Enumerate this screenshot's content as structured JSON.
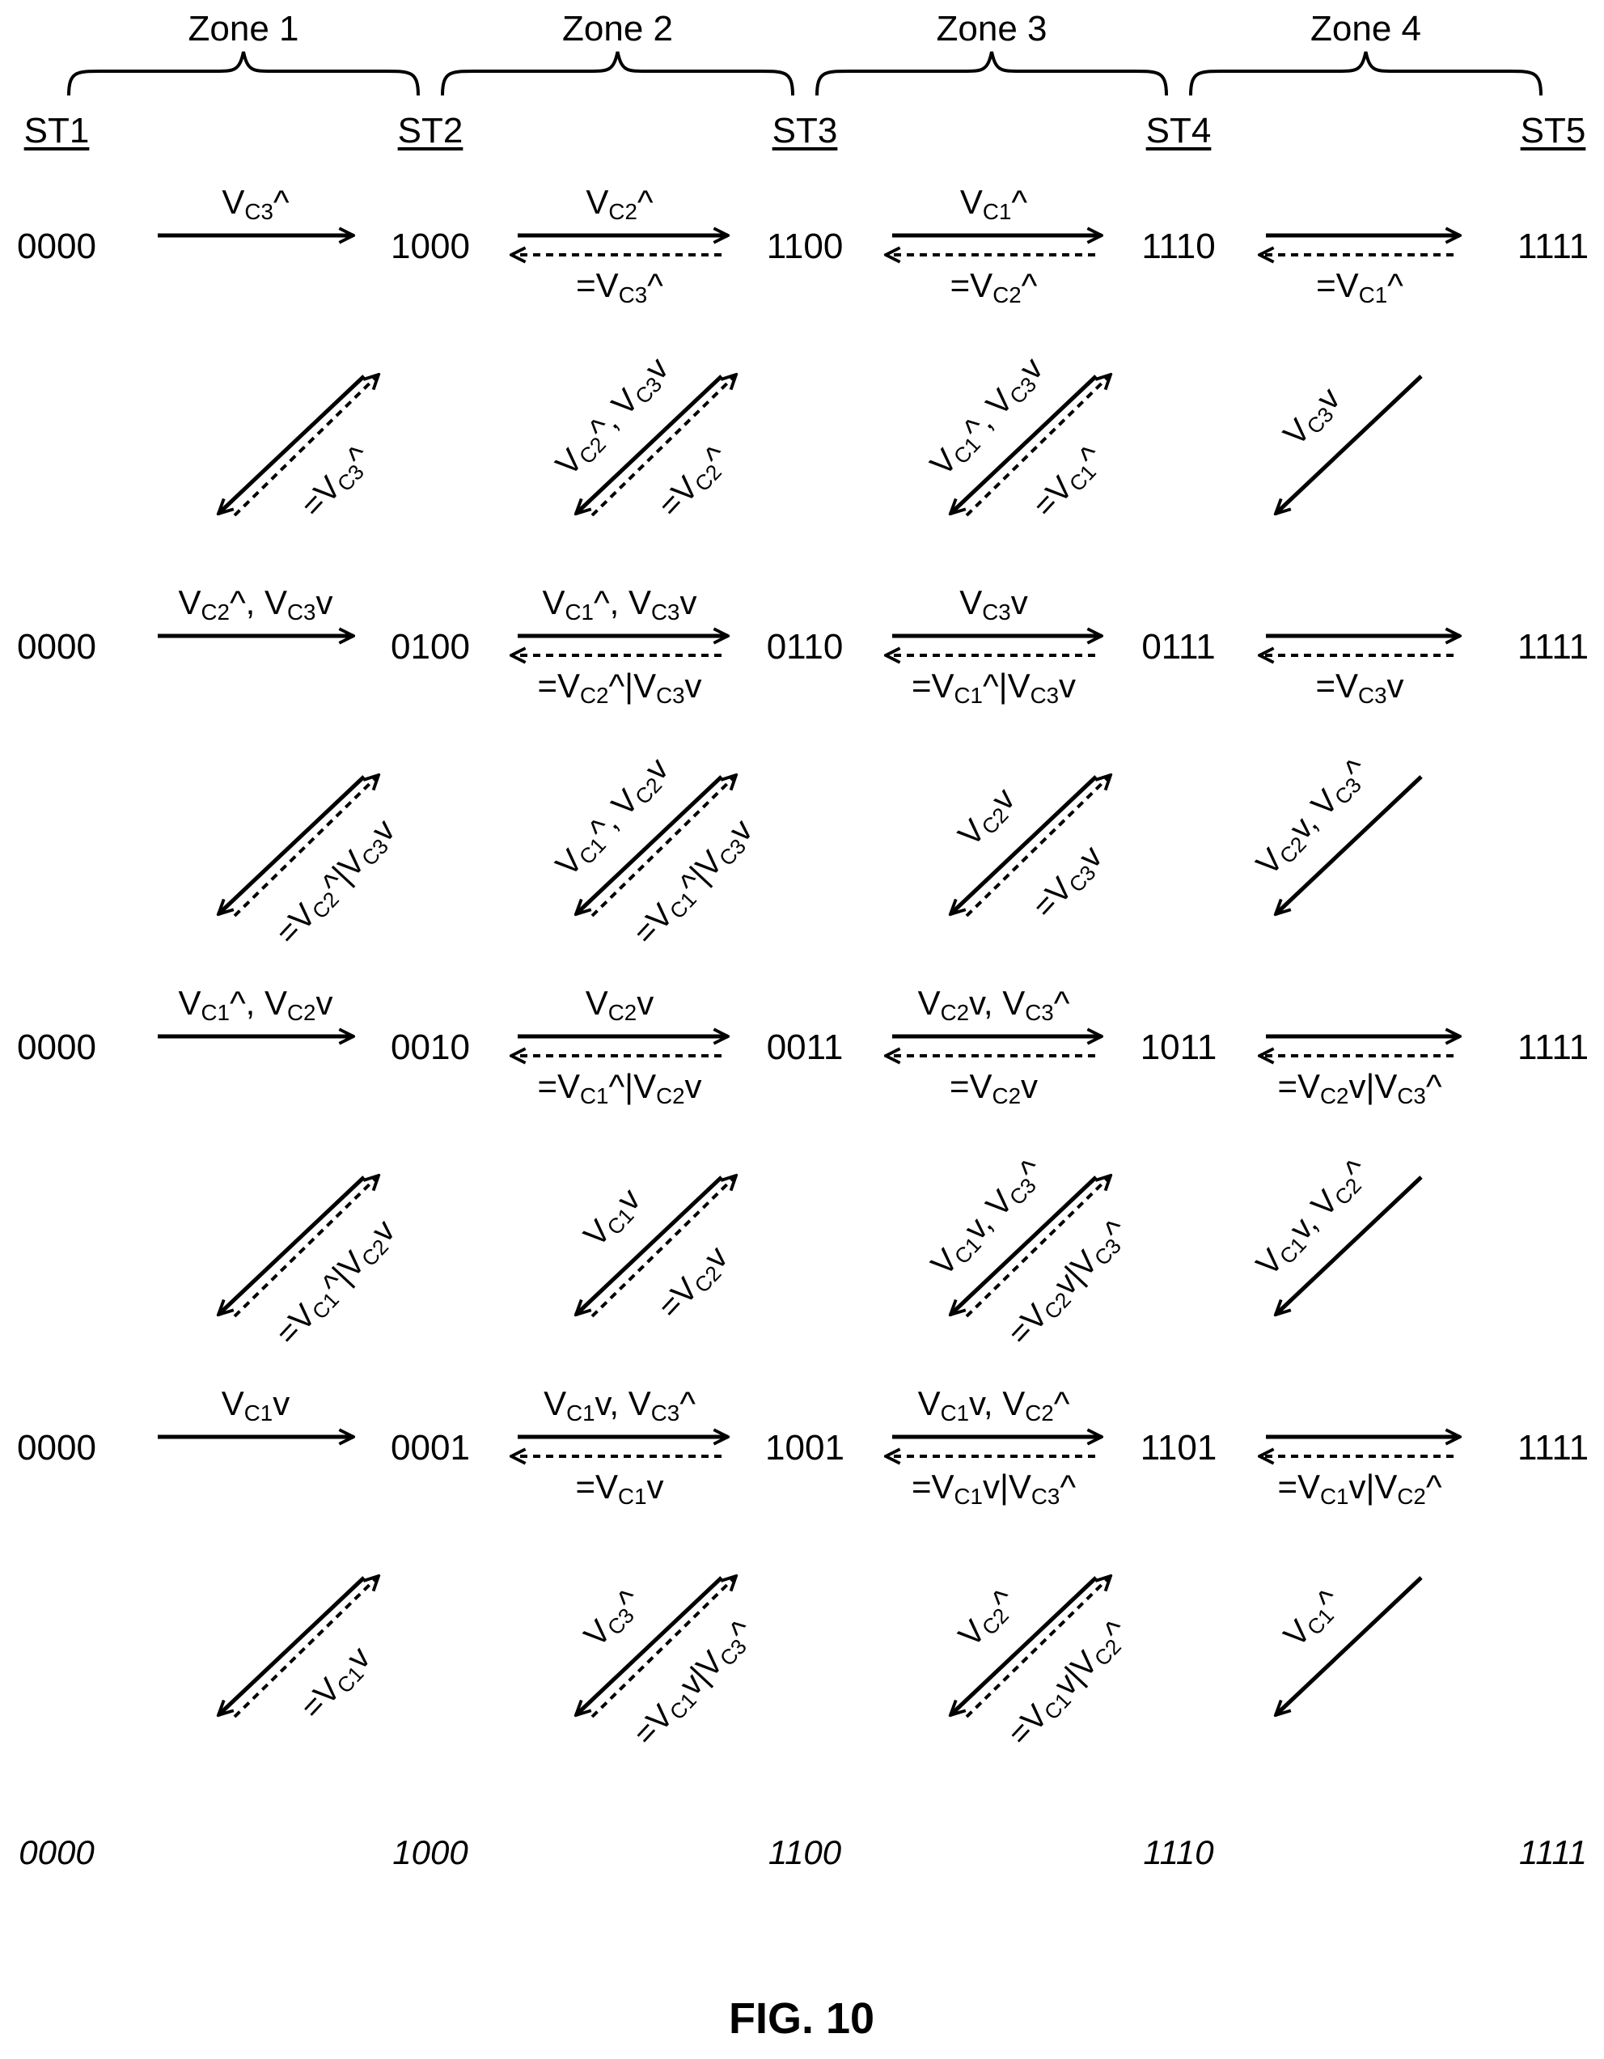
{
  "zones": [
    "Zone 1",
    "Zone 2",
    "Zone 3",
    "Zone 4"
  ],
  "stages": [
    "ST1",
    "ST2",
    "ST3",
    "ST4",
    "ST5"
  ],
  "rows": [
    {
      "codes": [
        "0000",
        "1000",
        "1100",
        "1110",
        "1111"
      ],
      "top": [
        [
          "V",
          "C3",
          "^"
        ],
        [
          "V",
          "C2",
          "^"
        ],
        [
          "V",
          "C1",
          "^"
        ],
        []
      ],
      "bottom": [
        null,
        [
          "=V",
          "C3",
          "^"
        ],
        [
          "=V",
          "C2",
          "^"
        ],
        [
          "=V",
          "C1",
          "^"
        ]
      ]
    },
    {
      "codes": [
        "0000",
        "0100",
        "0110",
        "0111",
        "1111"
      ],
      "top": [
        [
          "V",
          "C2",
          "^, V",
          "C3",
          "v"
        ],
        [
          "V",
          "C1",
          "^, V",
          "C3",
          "v"
        ],
        [
          "V",
          "C3",
          "v"
        ],
        []
      ],
      "bottom": [
        null,
        [
          "=V",
          "C2",
          "^|V",
          "C3",
          "v"
        ],
        [
          "=V",
          "C1",
          "^|V",
          "C3",
          "v"
        ],
        [
          "=V",
          "C3",
          "v"
        ]
      ]
    },
    {
      "codes": [
        "0000",
        "0010",
        "0011",
        "1011",
        "1111"
      ],
      "top": [
        [
          "V",
          "C1",
          "^, V",
          "C2",
          "v"
        ],
        [
          "V",
          "C2",
          "v"
        ],
        [
          "V",
          "C2",
          "v, V",
          "C3",
          "^"
        ],
        []
      ],
      "bottom": [
        null,
        [
          "=V",
          "C1",
          "^|V",
          "C2",
          "v"
        ],
        [
          "=V",
          "C2",
          "v"
        ],
        [
          "=V",
          "C2",
          "v|V",
          "C3",
          "^"
        ]
      ]
    },
    {
      "codes": [
        "0000",
        "0001",
        "1001",
        "1101",
        "1111"
      ],
      "top": [
        [
          "V",
          "C1",
          "v"
        ],
        [
          "V",
          "C1",
          "v, V",
          "C3",
          "^"
        ],
        [
          "V",
          "C1",
          "v, V",
          "C2",
          "^"
        ],
        []
      ],
      "bottom": [
        null,
        [
          "=V",
          "C1",
          "v"
        ],
        [
          "=V",
          "C1",
          "v|V",
          "C3",
          "^"
        ],
        [
          "=V",
          "C1",
          "v|V",
          "C2",
          "^"
        ]
      ]
    }
  ],
  "diagonals": [
    [
      {
        "solid": [],
        "dashed": [
          "=V",
          "C3",
          "^"
        ]
      },
      {
        "solid": [
          "V",
          "C2",
          "^, V",
          "C3",
          "v"
        ],
        "dashed": [
          "=V",
          "C2",
          "^"
        ]
      },
      {
        "solid": [
          "V",
          "C1",
          "^, V",
          "C3",
          "v"
        ],
        "dashed": [
          "=V",
          "C1",
          "^"
        ]
      },
      {
        "solid": [
          "V",
          "C3",
          "v"
        ],
        "dashed": null
      }
    ],
    [
      {
        "solid": [],
        "dashed": [
          "=V",
          "C2",
          "^|V",
          "C3",
          "v"
        ]
      },
      {
        "solid": [
          "V",
          "C1",
          "^, V",
          "C2",
          "v"
        ],
        "dashed": [
          "=V",
          "C1",
          "^|V",
          "C3",
          "v"
        ]
      },
      {
        "solid": [
          "V",
          "C2",
          "v"
        ],
        "dashed": [
          "=V",
          "C3",
          "v"
        ]
      },
      {
        "solid": [
          "V",
          "C2",
          "v, V",
          "C3",
          "^"
        ],
        "dashed": null
      }
    ],
    [
      {
        "solid": [],
        "dashed": [
          "=V",
          "C1",
          "^|V",
          "C2",
          "v"
        ]
      },
      {
        "solid": [
          "V",
          "C1",
          "v"
        ],
        "dashed": [
          "=V",
          "C2",
          "v"
        ]
      },
      {
        "solid": [
          "V",
          "C1",
          "v, V",
          "C3",
          "^"
        ],
        "dashed": [
          "=V",
          "C2",
          "v|V",
          "C3",
          "^"
        ]
      },
      {
        "solid": [
          "V",
          "C1",
          "v, V",
          "C2",
          "^"
        ],
        "dashed": null
      }
    ],
    [
      {
        "solid": [],
        "dashed": [
          "=V",
          "C1",
          "v"
        ]
      },
      {
        "solid": [
          "V",
          "C3",
          "^"
        ],
        "dashed": [
          "=V",
          "C1",
          "v|V",
          "C3",
          "^"
        ]
      },
      {
        "solid": [
          "V",
          "C2",
          "^"
        ],
        "dashed": [
          "=V",
          "C1",
          "v|V",
          "C2",
          "^"
        ]
      },
      {
        "solid": [
          "V",
          "C1",
          "^"
        ],
        "dashed": null
      }
    ]
  ],
  "final_codes": [
    "0000",
    "1000",
    "1100",
    "1110",
    "1111"
  ],
  "figure_label": "FIG. 10"
}
